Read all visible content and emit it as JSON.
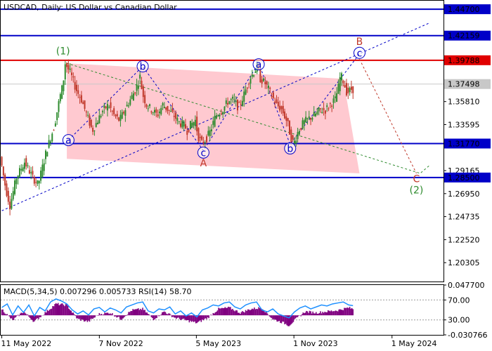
{
  "header": {
    "title": "USDCAD, Daily:  US Dollar vs Canadian Dollar"
  },
  "indicator": {
    "label": "MACD(5,34,5) 0.007296 0.005733 RSI(14) 58.70"
  },
  "chart_data": {
    "type": "line",
    "symbol": "USDCAD",
    "timeframe": "Daily",
    "title": "USDCAD, Daily:  US Dollar vs Canadian Dollar",
    "ylim": [
      1.1849,
      1.4552
    ],
    "y_ticks": [
      "1.44700",
      "1.42159",
      "1.39788",
      "1.37498",
      "1.35810",
      "1.33595",
      "1.31770",
      "1.29165",
      "1.28500",
      "1.26950",
      "1.24735",
      "1.22520",
      "1.20305"
    ],
    "x_ticks": [
      "11 May 2022",
      "7 Nov 2022",
      "5 May 2023",
      "1 Nov 2023",
      "1 May 2024"
    ],
    "x_ticks_time": [
      0,
      180,
      359,
      539,
      720
    ],
    "price_series": [
      [
        0,
        1.305
      ],
      [
        10,
        1.275
      ],
      [
        18,
        1.258
      ],
      [
        30,
        1.285
      ],
      [
        45,
        1.3
      ],
      [
        60,
        1.285
      ],
      [
        70,
        1.278
      ],
      [
        85,
        1.31
      ],
      [
        100,
        1.335
      ],
      [
        110,
        1.362
      ],
      [
        116,
        1.375
      ],
      [
        120,
        1.395
      ],
      [
        130,
        1.385
      ],
      [
        140,
        1.37
      ],
      [
        150,
        1.36
      ],
      [
        160,
        1.345
      ],
      [
        170,
        1.33
      ],
      [
        180,
        1.34
      ],
      [
        190,
        1.35
      ],
      [
        200,
        1.355
      ],
      [
        210,
        1.345
      ],
      [
        220,
        1.34
      ],
      [
        230,
        1.35
      ],
      [
        240,
        1.36
      ],
      [
        250,
        1.37
      ],
      [
        258,
        1.382
      ],
      [
        263,
        1.365
      ],
      [
        270,
        1.355
      ],
      [
        280,
        1.35
      ],
      [
        290,
        1.345
      ],
      [
        300,
        1.355
      ],
      [
        310,
        1.35
      ],
      [
        320,
        1.345
      ],
      [
        330,
        1.338
      ],
      [
        340,
        1.335
      ],
      [
        345,
        1.33
      ],
      [
        350,
        1.335
      ],
      [
        360,
        1.34
      ],
      [
        365,
        1.325
      ],
      [
        372,
        1.318
      ],
      [
        380,
        1.322
      ],
      [
        388,
        1.33
      ],
      [
        398,
        1.345
      ],
      [
        410,
        1.35
      ],
      [
        420,
        1.358
      ],
      [
        430,
        1.36
      ],
      [
        440,
        1.352
      ],
      [
        450,
        1.365
      ],
      [
        460,
        1.38
      ],
      [
        470,
        1.388
      ],
      [
        474,
        1.392
      ],
      [
        480,
        1.38
      ],
      [
        490,
        1.375
      ],
      [
        500,
        1.365
      ],
      [
        510,
        1.355
      ],
      [
        520,
        1.35
      ],
      [
        530,
        1.338
      ],
      [
        537,
        1.322
      ],
      [
        542,
        1.318
      ],
      [
        550,
        1.33
      ],
      [
        560,
        1.338
      ],
      [
        570,
        1.342
      ],
      [
        580,
        1.345
      ],
      [
        590,
        1.35
      ],
      [
        600,
        1.35
      ],
      [
        610,
        1.356
      ],
      [
        618,
        1.36
      ],
      [
        624,
        1.372
      ],
      [
        628,
        1.384
      ],
      [
        633,
        1.378
      ],
      [
        640,
        1.366
      ],
      [
        648,
        1.37
      ]
    ],
    "horizontal_levels": [
      {
        "value": 1.447,
        "label": "1.44700",
        "color": "#0000c8"
      },
      {
        "value": 1.42159,
        "label": "1.42159",
        "color": "#0000c8"
      },
      {
        "value": 1.39788,
        "label": "1.39788",
        "color": "#e00000"
      },
      {
        "value": 1.3177,
        "label": "1.31770",
        "color": "#0000c8"
      },
      {
        "value": 1.285,
        "label": "1.28500",
        "color": "#0000c8"
      }
    ],
    "current_price": {
      "value": 1.37498,
      "label": "1.37498"
    },
    "channel_zone": [
      [
        120,
        1.395
      ],
      [
        630,
        1.38
      ],
      [
        660,
        1.289
      ],
      [
        120,
        1.303
      ]
    ],
    "wave_labels": [
      {
        "label": "(1)",
        "time": 113,
        "price": 1.407,
        "color": "#2e8b2e",
        "shape": "none"
      },
      {
        "label": "a",
        "time": 123,
        "price": 1.321,
        "color": "#0000c8",
        "shape": "circle"
      },
      {
        "label": "b",
        "time": 260,
        "price": 1.392,
        "color": "#0000c8",
        "shape": "circle"
      },
      {
        "label": "c",
        "time": 372,
        "price": 1.309,
        "color": "#0000c8",
        "shape": "circle"
      },
      {
        "label": "A",
        "time": 372,
        "price": 1.299,
        "color": "#c0392b",
        "shape": "none"
      },
      {
        "label": "a",
        "time": 474,
        "price": 1.394,
        "color": "#0000c8",
        "shape": "circle"
      },
      {
        "label": "b",
        "time": 532,
        "price": 1.313,
        "color": "#0000c8",
        "shape": "circle"
      },
      {
        "label": "c",
        "time": 660,
        "price": 1.405,
        "color": "#0000c8",
        "shape": "circle"
      },
      {
        "label": "B",
        "time": 660,
        "price": 1.416,
        "color": "#c0392b",
        "shape": "none"
      },
      {
        "label": "C",
        "time": 765,
        "price": 1.284,
        "color": "#c0392b",
        "shape": "none"
      },
      {
        "label": "(2)",
        "time": 765,
        "price": 1.273,
        "color": "#2e8b2e",
        "shape": "none"
      }
    ],
    "dashed_lines": [
      {
        "points": [
          [
            0,
            1.253
          ],
          [
            790,
            1.434
          ]
        ],
        "color": "#0000c8"
      },
      {
        "points": [
          [
            123,
            1.321
          ],
          [
            260,
            1.392
          ],
          [
            372,
            1.311
          ],
          [
            474,
            1.395
          ],
          [
            532,
            1.317
          ],
          [
            660,
            1.404
          ]
        ],
        "color": "#0000c8"
      },
      {
        "points": [
          [
            120,
            1.395
          ],
          [
            772,
            1.289
          ],
          [
            790,
            1.297
          ]
        ],
        "color": "#2e8b2e"
      },
      {
        "points": [
          [
            660,
            1.399
          ],
          [
            765,
            1.289
          ]
        ],
        "color": "#c0392b"
      }
    ],
    "colors": {
      "bull": "#2e8b2e",
      "bear": "#c0392b",
      "zone": "#ffc0c8",
      "macd": "#800080",
      "rsi": "#1e90ff"
    },
    "macd_rsi_ylim": [
      -0.030766,
      0.0477
    ],
    "indicator_ticks": [
      "0.047700",
      "70.00",
      "30.00",
      "-0.030766"
    ],
    "macd_histogram": [
      [
        0,
        0.01
      ],
      [
        20,
        -0.008
      ],
      [
        40,
        0.006
      ],
      [
        60,
        -0.01
      ],
      [
        80,
        0.004
      ],
      [
        100,
        0.018
      ],
      [
        120,
        0.016
      ],
      [
        140,
        -0.006
      ],
      [
        160,
        -0.01
      ],
      [
        180,
        0.002
      ],
      [
        200,
        0.004
      ],
      [
        220,
        -0.006
      ],
      [
        240,
        0.008
      ],
      [
        260,
        0.01
      ],
      [
        280,
        -0.006
      ],
      [
        300,
        0.006
      ],
      [
        320,
        -0.004
      ],
      [
        340,
        -0.008
      ],
      [
        360,
        -0.012
      ],
      [
        380,
        -0.004
      ],
      [
        400,
        0.01
      ],
      [
        420,
        0.012
      ],
      [
        440,
        0.004
      ],
      [
        460,
        0.01
      ],
      [
        480,
        0.012
      ],
      [
        500,
        -0.006
      ],
      [
        520,
        -0.012
      ],
      [
        530,
        -0.016
      ],
      [
        540,
        -0.008
      ],
      [
        560,
        0.006
      ],
      [
        580,
        0.004
      ],
      [
        600,
        0.006
      ],
      [
        620,
        0.008
      ],
      [
        640,
        0.012
      ],
      [
        648,
        0.01
      ]
    ],
    "rsi_series": [
      [
        0,
        55
      ],
      [
        10,
        62
      ],
      [
        20,
        40
      ],
      [
        30,
        58
      ],
      [
        40,
        45
      ],
      [
        50,
        60
      ],
      [
        60,
        38
      ],
      [
        70,
        55
      ],
      [
        80,
        48
      ],
      [
        90,
        66
      ],
      [
        100,
        72
      ],
      [
        110,
        68
      ],
      [
        120,
        62
      ],
      [
        130,
        50
      ],
      [
        140,
        42
      ],
      [
        150,
        48
      ],
      [
        160,
        40
      ],
      [
        170,
        52
      ],
      [
        180,
        55
      ],
      [
        190,
        46
      ],
      [
        200,
        54
      ],
      [
        210,
        50
      ],
      [
        220,
        44
      ],
      [
        230,
        56
      ],
      [
        240,
        60
      ],
      [
        250,
        64
      ],
      [
        260,
        66
      ],
      [
        270,
        48
      ],
      [
        280,
        44
      ],
      [
        290,
        52
      ],
      [
        300,
        50
      ],
      [
        310,
        56
      ],
      [
        320,
        42
      ],
      [
        330,
        48
      ],
      [
        340,
        38
      ],
      [
        350,
        44
      ],
      [
        360,
        36
      ],
      [
        370,
        50
      ],
      [
        380,
        54
      ],
      [
        390,
        60
      ],
      [
        400,
        58
      ],
      [
        410,
        64
      ],
      [
        420,
        66
      ],
      [
        430,
        56
      ],
      [
        440,
        52
      ],
      [
        450,
        60
      ],
      [
        460,
        64
      ],
      [
        470,
        66
      ],
      [
        480,
        50
      ],
      [
        490,
        46
      ],
      [
        500,
        52
      ],
      [
        510,
        42
      ],
      [
        520,
        38
      ],
      [
        530,
        34
      ],
      [
        540,
        46
      ],
      [
        550,
        54
      ],
      [
        560,
        58
      ],
      [
        570,
        52
      ],
      [
        580,
        56
      ],
      [
        590,
        60
      ],
      [
        600,
        58
      ],
      [
        610,
        62
      ],
      [
        620,
        64
      ],
      [
        630,
        66
      ],
      [
        640,
        60
      ],
      [
        648,
        58.7
      ]
    ]
  }
}
